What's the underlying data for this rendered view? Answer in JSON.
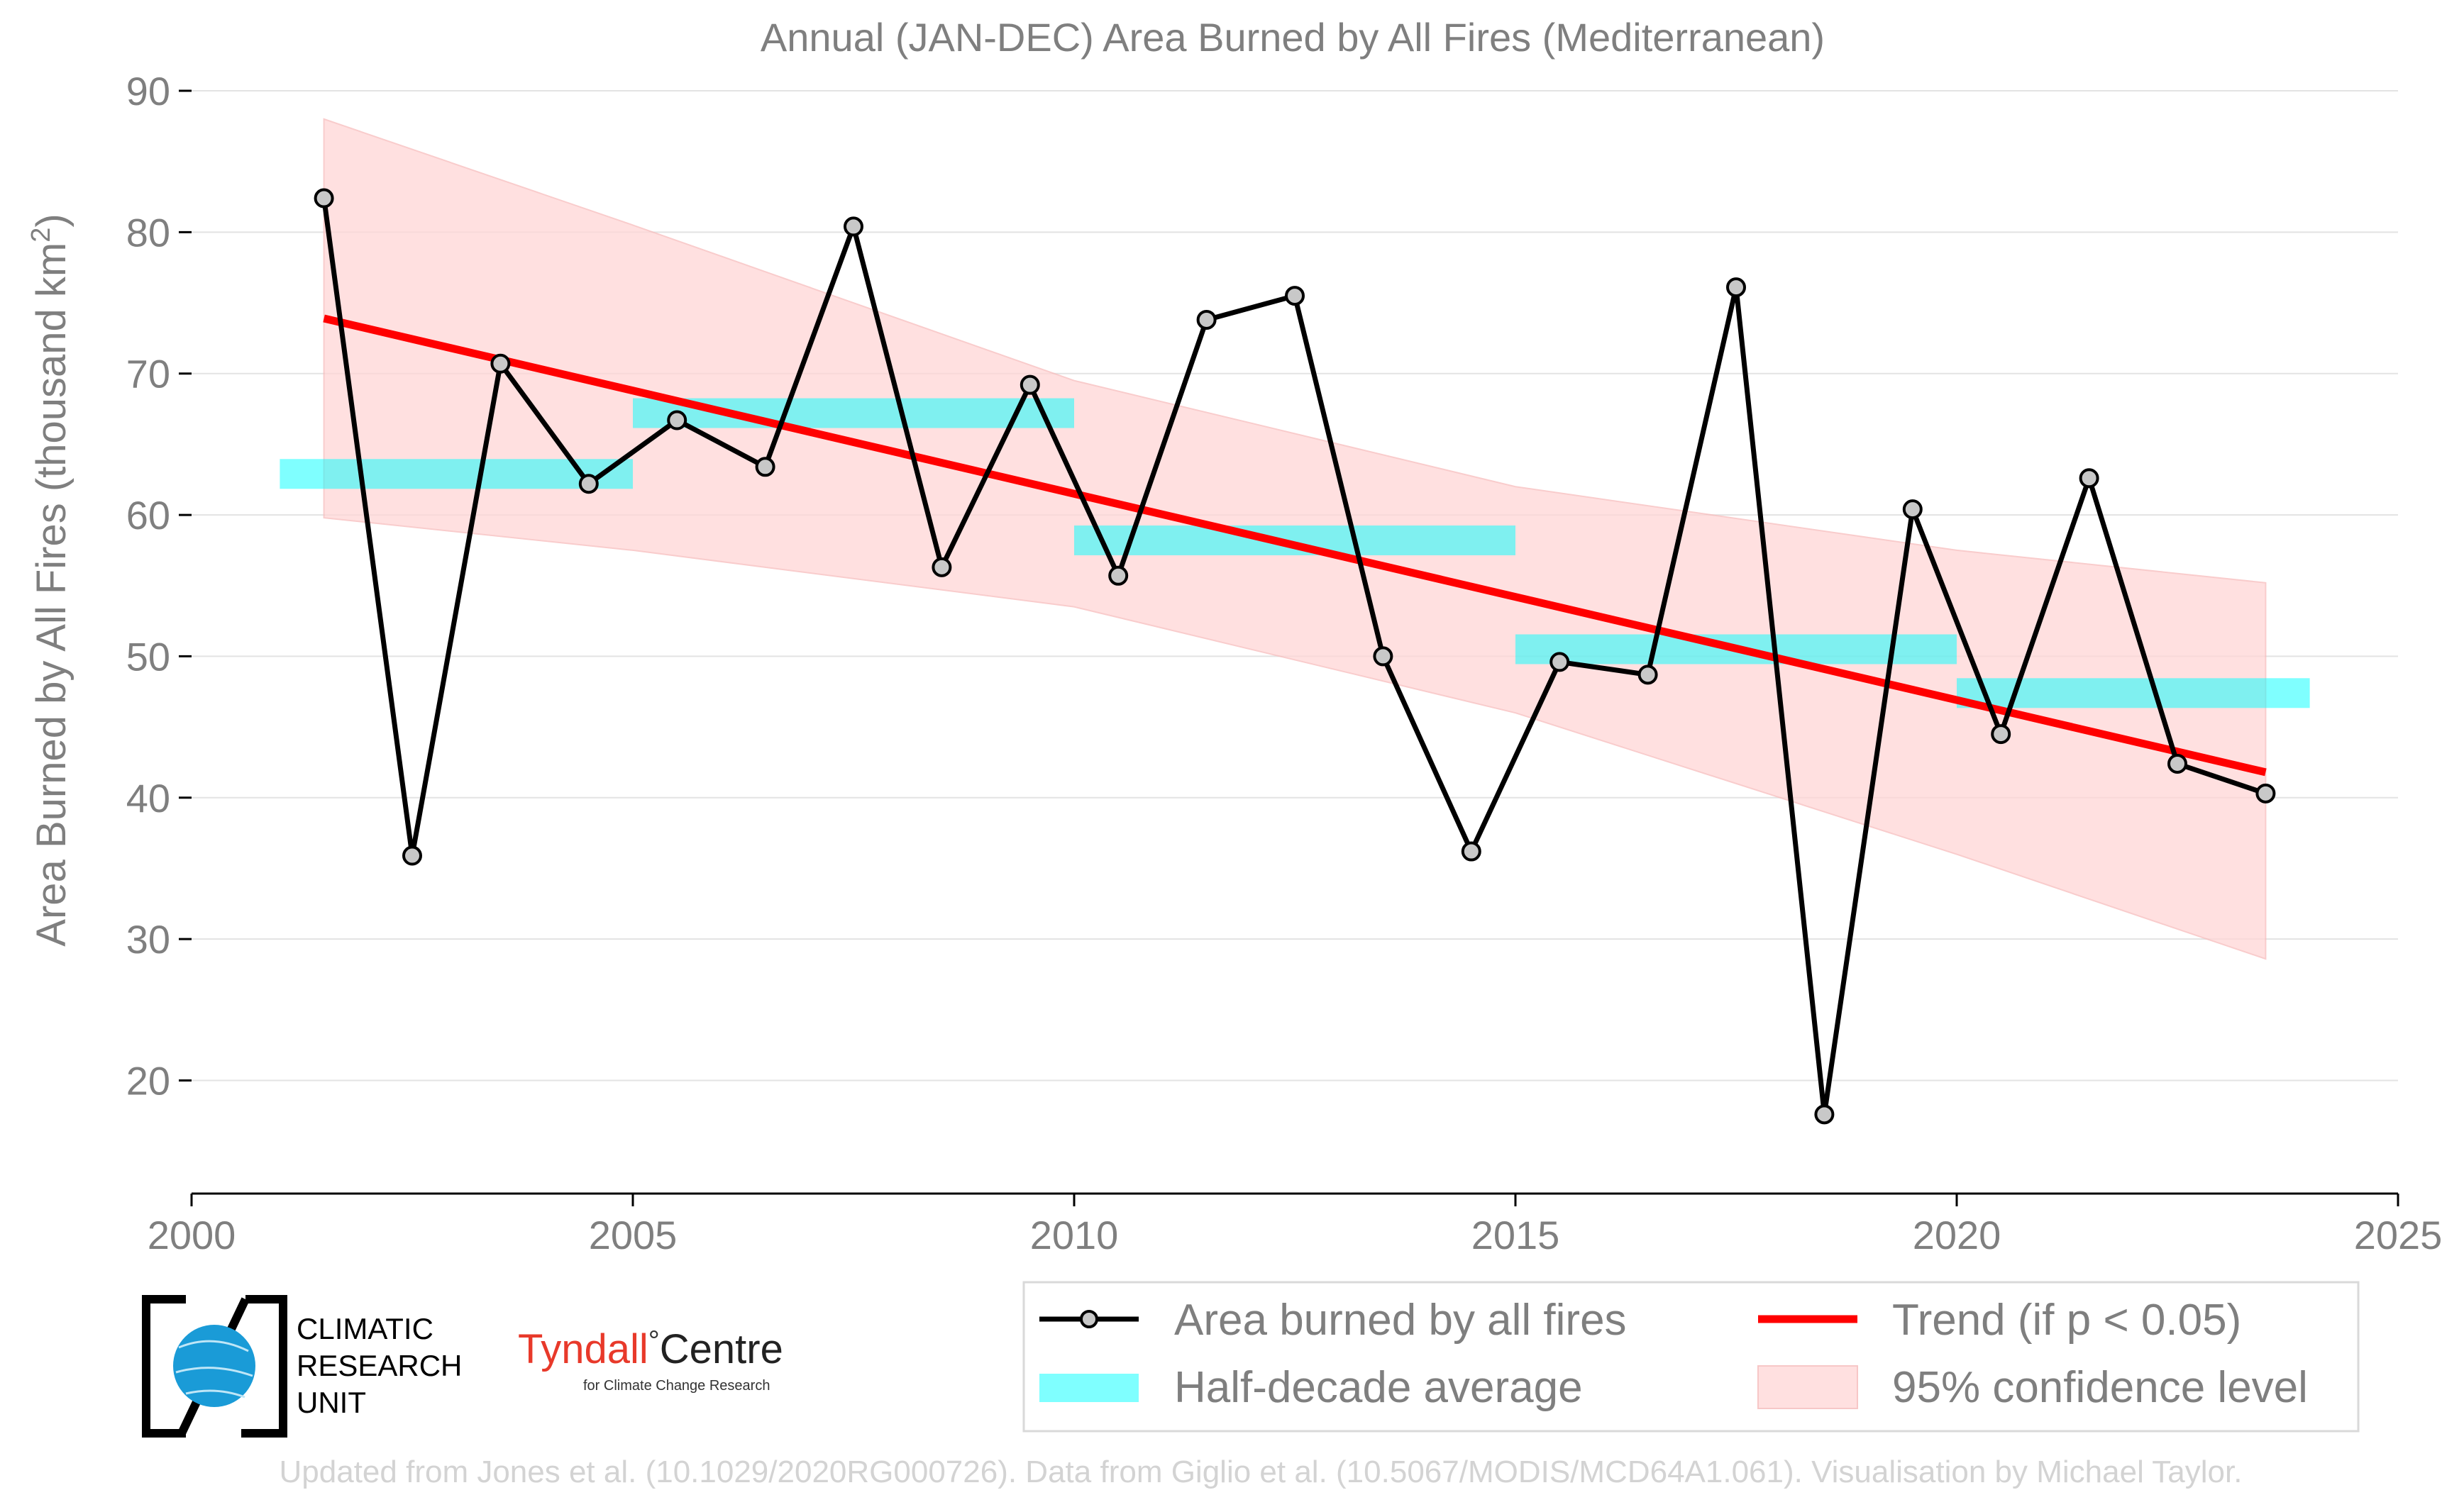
{
  "chart_data": {
    "type": "line",
    "title": "Annual (JAN-DEC) Area Burned by All Fires (Mediterranean)",
    "xlabel": "",
    "ylabel": "Area Burned by All Fires (thousand km",
    "ylabel_sup": "2",
    "ylabel_end": ")",
    "xlim": [
      2000,
      2025
    ],
    "ylim": [
      12,
      90
    ],
    "x_ticks": [
      2000,
      2005,
      2010,
      2015,
      2020,
      2025
    ],
    "y_ticks": [
      20,
      30,
      40,
      50,
      60,
      70,
      80,
      90
    ],
    "grid": "horizontal",
    "series": [
      {
        "name": "Area burned by all fires",
        "color": "#000000",
        "marker_color": "#c8c8c8",
        "x": [
          2001.5,
          2002.5,
          2003.5,
          2004.5,
          2005.5,
          2006.5,
          2007.5,
          2008.5,
          2009.5,
          2010.5,
          2011.5,
          2012.5,
          2013.5,
          2014.5,
          2015.5,
          2016.5,
          2017.5,
          2018.5,
          2019.5,
          2020.5,
          2021.5,
          2022.5,
          2023.5
        ],
        "y": [
          82.4,
          35.9,
          70.7,
          62.2,
          66.7,
          63.4,
          80.4,
          56.3,
          69.2,
          55.7,
          73.8,
          75.5,
          50.0,
          36.2,
          49.6,
          48.7,
          76.1,
          17.6,
          60.4,
          44.5,
          62.6,
          42.4,
          40.3
        ]
      }
    ],
    "half_decade_average": {
      "name": "Half-decade average",
      "color": "#00ffff",
      "segments": [
        {
          "x_start": 2001,
          "x_end": 2005,
          "y": 62.9
        },
        {
          "x_start": 2005,
          "x_end": 2010,
          "y": 67.2
        },
        {
          "x_start": 2010,
          "x_end": 2015,
          "y": 58.2
        },
        {
          "x_start": 2015,
          "x_end": 2020,
          "y": 50.5
        },
        {
          "x_start": 2020,
          "x_end": 2024,
          "y": 47.4
        }
      ]
    },
    "trend": {
      "name": "Trend (if p < 0.05)",
      "color": "#ff0000",
      "x": [
        2001.5,
        2023.5
      ],
      "y": [
        73.9,
        41.8
      ]
    },
    "confidence_band": {
      "name": "95% confidence level",
      "color": "#ffd6d6",
      "x": [
        2001.5,
        2005,
        2010,
        2015,
        2020,
        2023.5
      ],
      "upper": [
        88.0,
        80.5,
        69.5,
        62.0,
        57.5,
        55.2
      ],
      "lower": [
        59.8,
        57.5,
        53.5,
        46.0,
        36.0,
        28.6
      ]
    },
    "legend_placement": "bottom-right, outside plot",
    "legend": [
      "Area burned by all fires",
      "Trend (if p < 0.05)",
      "Half-decade average",
      "95% confidence level"
    ]
  },
  "logos": {
    "cru_line1": "CLIMATIC",
    "cru_line2": "RESEARCH",
    "cru_line3": "UNIT",
    "tyndall_main": "Tyndall",
    "tyndall_degree": "°",
    "tyndall_centre": "Centre",
    "tyndall_sub": "for Climate Change Research"
  },
  "footer": "Updated from Jones et al. (10.1029/2020RG000726). Data from Giglio et al. (10.5067/MODIS/MCD64A1.061). Visualisation by Michael Taylor."
}
